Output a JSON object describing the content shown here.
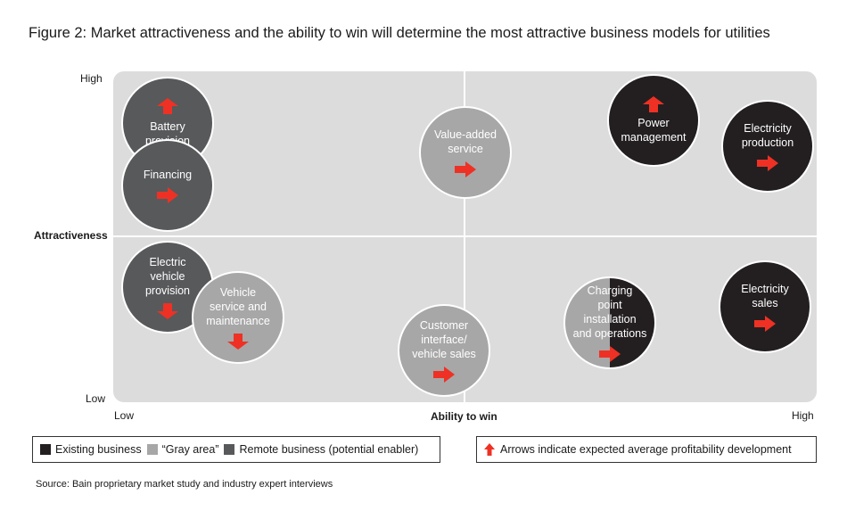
{
  "title": "Figure 2: Market attractiveness and the ability to win will determine the most attractive business models for utilities",
  "source": "Source: Bain proprietary market study and industry expert interviews",
  "colors": {
    "existing": "#231f20",
    "gray_area": "#a7a7a7",
    "remote": "#58595b",
    "arrow": "#ee3124",
    "background": "#dcdcdc"
  },
  "legend": {
    "existing": "Existing business",
    "gray_area": "“Gray area”",
    "remote": "Remote business (potential enabler)",
    "arrows": "Arrows indicate expected average profitability development"
  },
  "chart_data": {
    "type": "scatter",
    "x_axis": {
      "label": "Ability to win",
      "low": "Low",
      "high": "High"
    },
    "y_axis": {
      "label": "Attractiveness",
      "low": "Low",
      "high": "High"
    },
    "points": [
      {
        "label": "Battery provision",
        "category": "remote",
        "arrow": "up"
      },
      {
        "label": "Financing",
        "category": "remote",
        "arrow": "right"
      },
      {
        "label": "Value-added\nservice",
        "category": "gray_area",
        "arrow": "right"
      },
      {
        "label": "Power\nmanagement",
        "category": "existing",
        "arrow": "up"
      },
      {
        "label": "Electricity\nproduction",
        "category": "existing",
        "arrow": "right"
      },
      {
        "label": "Electric\nvehicle\nprovision",
        "category": "remote",
        "arrow": "down"
      },
      {
        "label": "Vehicle\nservice and\nmaintenance",
        "category": "gray_area",
        "arrow": "down"
      },
      {
        "label": "Customer\ninterface/\nvehicle sales",
        "category": "gray_area",
        "arrow": "right"
      },
      {
        "label": "Charging\npoint\ninstallation\nand operations",
        "category": "gray_area/existing",
        "arrow": "right"
      },
      {
        "label": "Electricity\nsales",
        "category": "existing",
        "arrow": "right"
      }
    ]
  }
}
